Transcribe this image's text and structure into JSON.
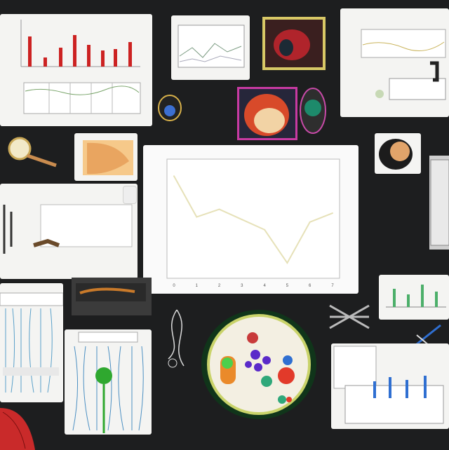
{
  "main_chart": {
    "title": "",
    "x_ticks": [
      "0",
      "1",
      "2",
      "3",
      "4",
      "5",
      "6",
      "7"
    ],
    "y_ticks": [
      "",
      "",
      "",
      "",
      ""
    ]
  },
  "chart_data": {
    "type": "line",
    "x": [
      0,
      1,
      2,
      3,
      4,
      5,
      6,
      7
    ],
    "values": [
      8,
      4.8,
      5.4,
      4.6,
      3.8,
      1.2,
      4.4,
      5.1
    ],
    "ylim": [
      0,
      9
    ],
    "line_color": "#e6e1b8",
    "grid": false
  },
  "colors": {
    "background": "#1d1e1f",
    "accent_red": "#cc2222",
    "accent_green": "#2fa82f",
    "accent_blue": "#2f6fd1"
  },
  "scribbles": {
    "a": "",
    "b": "",
    "c": "",
    "d": ""
  }
}
